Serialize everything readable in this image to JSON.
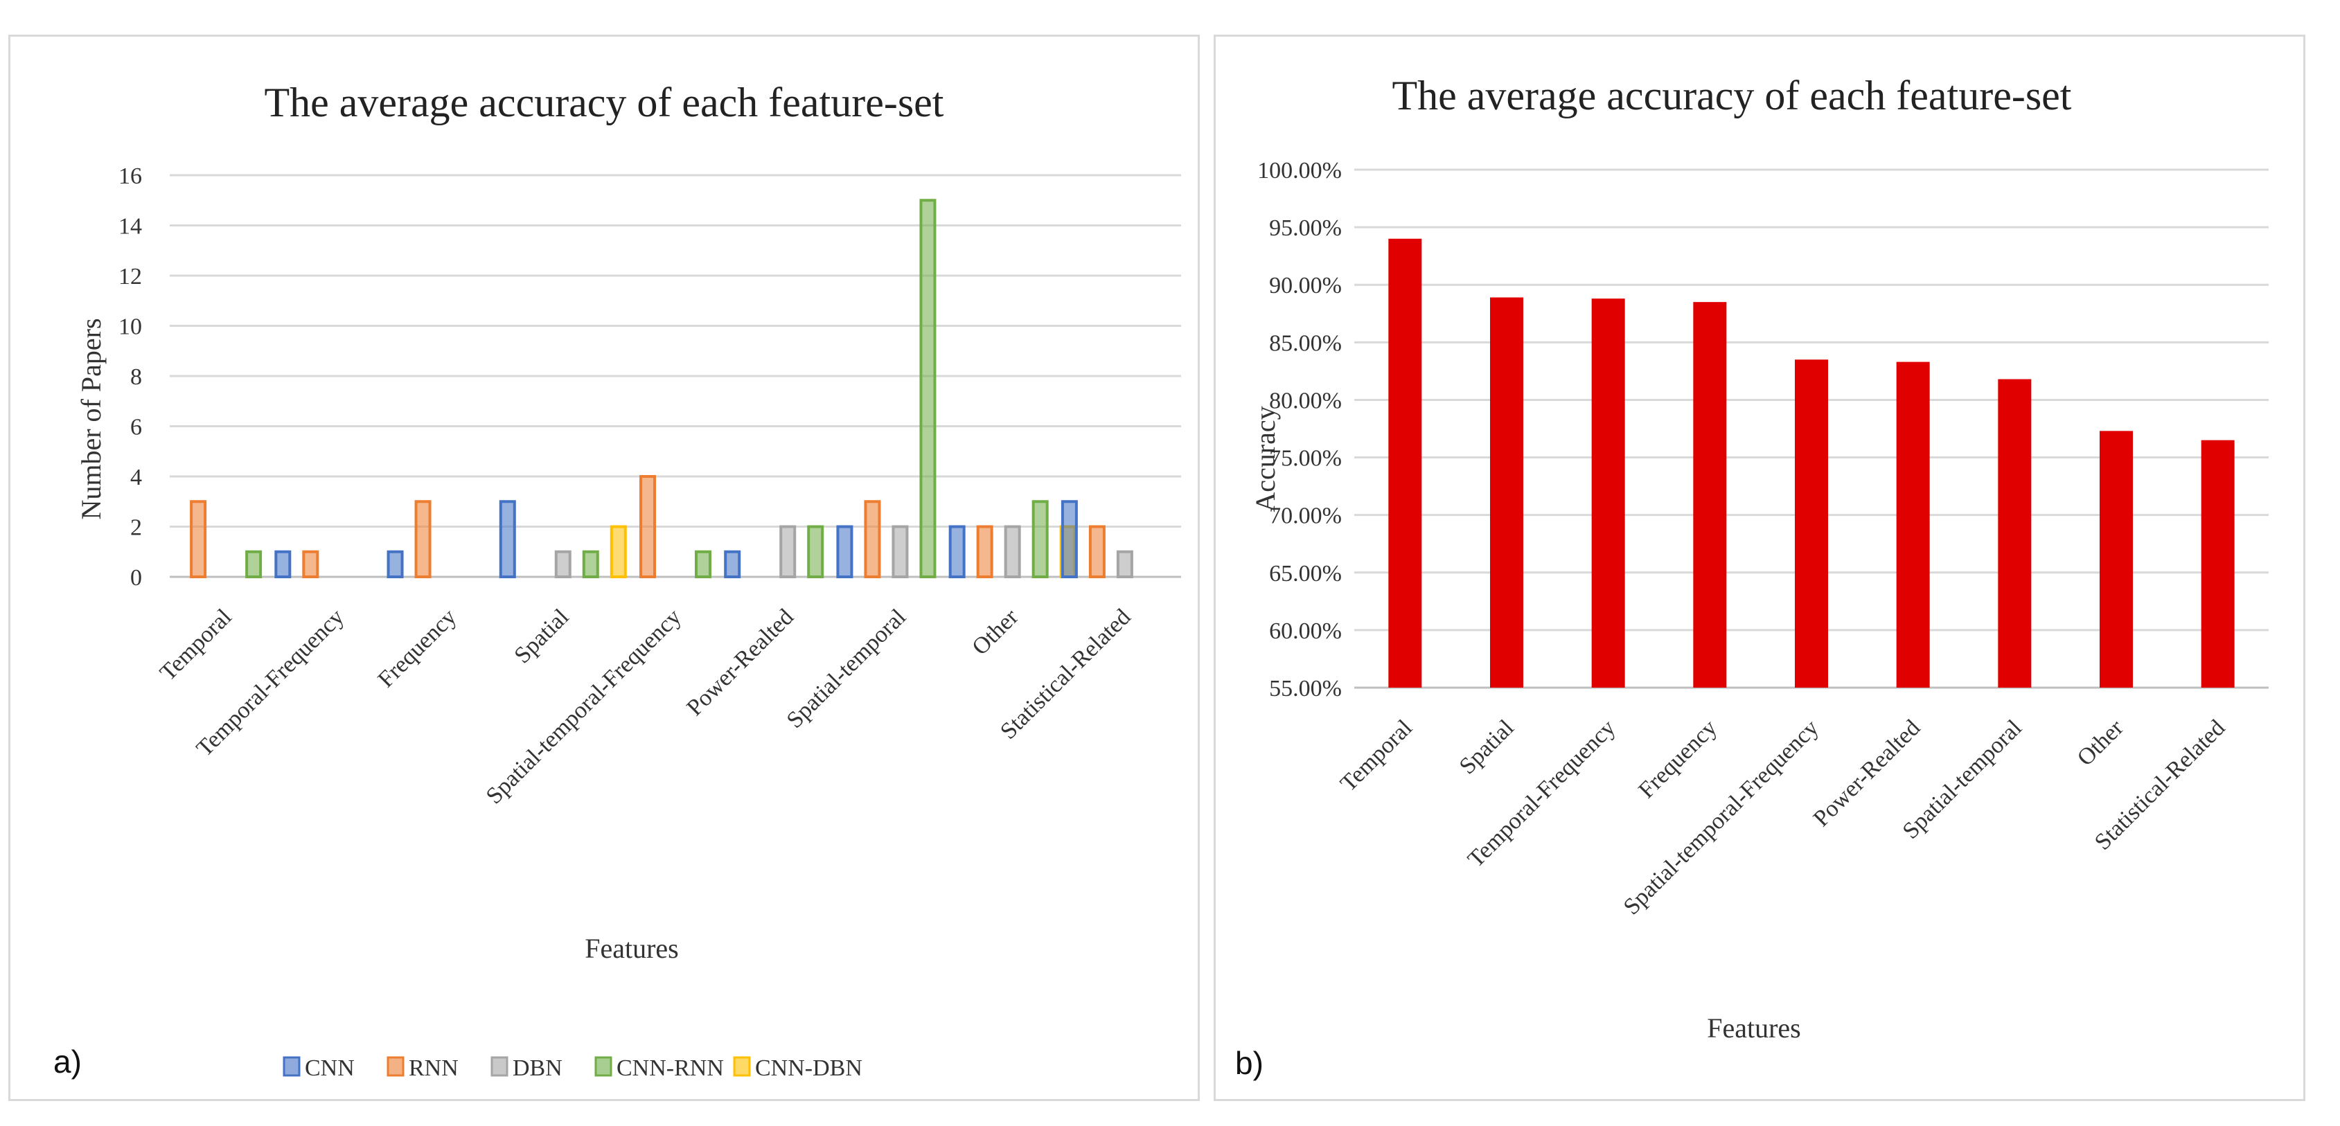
{
  "panel_a": {
    "label": "a)",
    "chart_data": {
      "type": "bar",
      "title": "The average accuracy of each feature-set",
      "xlabel": "Features",
      "ylabel": "Number of Papers",
      "ylim": [
        0,
        16
      ],
      "yticks": [
        "0",
        "2",
        "4",
        "6",
        "8",
        "10",
        "12",
        "14",
        "16"
      ],
      "categories": [
        "Temporal",
        "Temporal-Frequency",
        "Frequency",
        "Spatial",
        "Spatial-temporal-Frequency",
        "Power-Realted",
        "Spatial-temporal",
        "Other",
        "Statistical-Related"
      ],
      "series": [
        {
          "name": "CNN",
          "color": "#4472c4",
          "values": [
            0,
            1,
            1,
            3,
            0,
            1,
            2,
            2,
            3
          ]
        },
        {
          "name": "RNN",
          "color": "#ed7d31",
          "values": [
            3,
            1,
            3,
            0,
            4,
            0,
            3,
            2,
            2
          ]
        },
        {
          "name": "DBN",
          "color": "#a5a5a5",
          "values": [
            0,
            0,
            0,
            1,
            0,
            2,
            2,
            2,
            1
          ]
        },
        {
          "name": "CNN-RNN",
          "color": "#70ad47",
          "values": [
            1,
            0,
            0,
            1,
            1,
            2,
            15,
            3,
            0
          ]
        },
        {
          "name": "CNN-DBN",
          "color": "#ffc000",
          "values": [
            0,
            0,
            0,
            2,
            0,
            0,
            0,
            2,
            0
          ]
        }
      ],
      "legend": "bottom"
    }
  },
  "panel_b": {
    "label": "b)",
    "chart_data": {
      "type": "bar",
      "title": "The average accuracy of each feature-set",
      "xlabel": "Features",
      "ylabel": "Accuracy",
      "ylim": [
        55,
        100
      ],
      "yticks": [
        "55.00%",
        "60.00%",
        "65.00%",
        "70.00%",
        "75.00%",
        "80.00%",
        "85.00%",
        "90.00%",
        "95.00%",
        "100.00%"
      ],
      "categories": [
        "Temporal",
        "Spatial",
        "Temporal-Frequency",
        "Frequency",
        "Spatial-temporal-Frequency",
        "Power-Realted",
        "Spatial-temporal",
        "Other",
        "Statistical-Related"
      ],
      "values": [
        94.0,
        88.9,
        88.8,
        88.5,
        83.5,
        83.3,
        81.8,
        77.3,
        76.5
      ],
      "color": "#e00000",
      "legend": "none"
    }
  }
}
